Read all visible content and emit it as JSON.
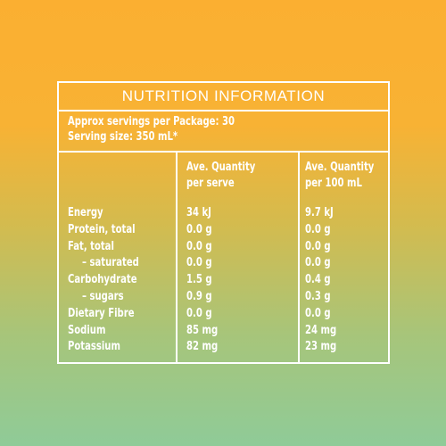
{
  "title": "NUTRITION INFORMATION",
  "servings_line": "Approx servings per Package: 30",
  "serving_size_line": "Serving size: 350 mL*",
  "columns": {
    "per_serve_line1": "Ave. Quantity",
    "per_serve_line2": "per serve",
    "per_100_line1": "Ave. Quantity",
    "per_100_line2": "per 100 mL"
  },
  "rows": [
    {
      "label": "Energy",
      "per_serve": "34 kJ",
      "per_100": "9.7 kJ"
    },
    {
      "label": "Protein, total",
      "per_serve": "0.0 g",
      "per_100": "0.0 g"
    },
    {
      "label": "Fat, total",
      "per_serve": "0.0 g",
      "per_100": "0.0 g"
    },
    {
      "label": "– saturated",
      "per_serve": "0.0 g",
      "per_100": "0.0 g"
    },
    {
      "label": "Carbohydrate",
      "per_serve": "1.5 g",
      "per_100": "0.4 g"
    },
    {
      "label": "– sugars",
      "per_serve": "0.9 g",
      "per_100": "0.3 g"
    },
    {
      "label": "Dietary Fibre",
      "per_serve": "0.0 g",
      "per_100": "0.0 g"
    },
    {
      "label": "Sodium",
      "per_serve": "85 mg",
      "per_100": "24 mg"
    },
    {
      "label": "Potassium",
      "per_serve": "82 mg",
      "per_100": "23 mg"
    }
  ],
  "colors": {
    "background_top": "#FBAF31",
    "background_bottom": "#8FCB98",
    "text": "#FFFFFF"
  }
}
